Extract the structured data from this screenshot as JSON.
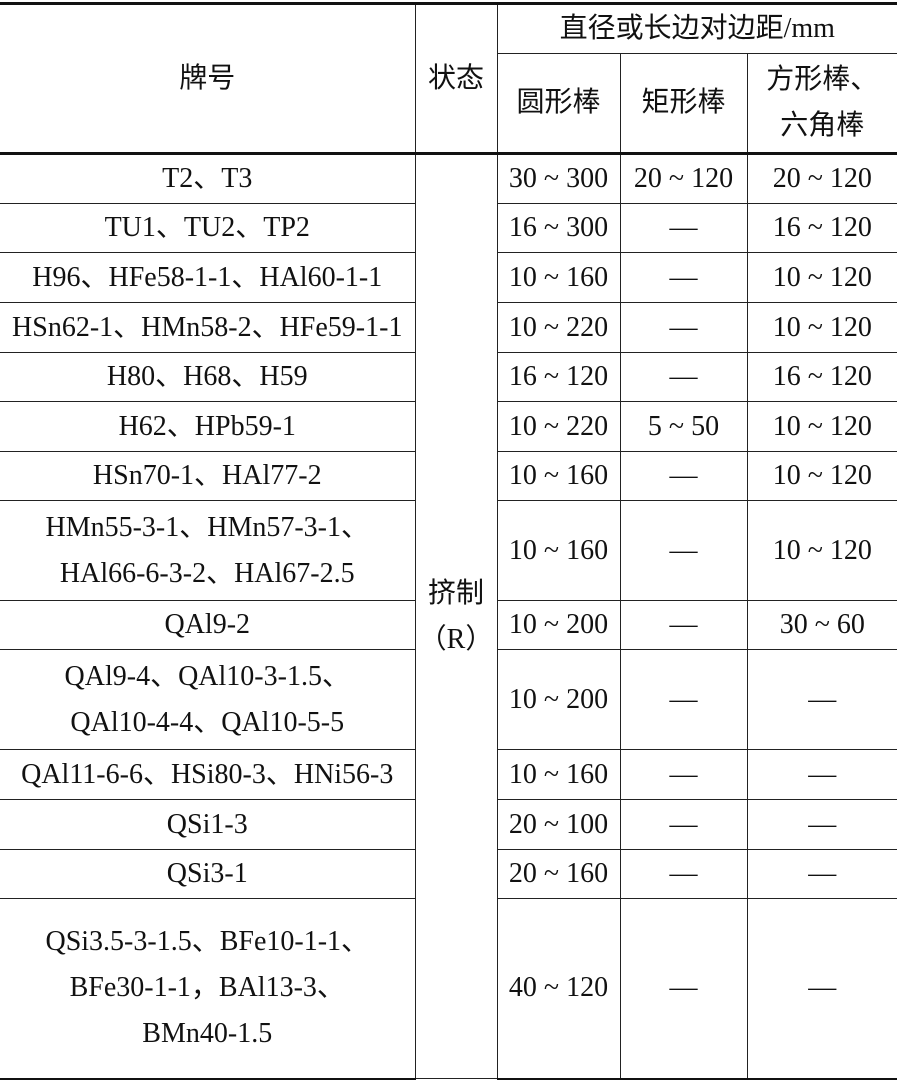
{
  "header": {
    "grade": "牌号",
    "state": "状态",
    "size_group": "直径或长边对边距/mm",
    "round_bar": "圆形棒",
    "rect_bar": "矩形棒",
    "square_hex_bar_line1": "方形棒、",
    "square_hex_bar_line2": "六角棒"
  },
  "state_value_line1": "挤制",
  "state_value_line2": "（R）",
  "rows": [
    {
      "grade": [
        "T2、T3"
      ],
      "round": "30 ~ 300",
      "rect": "20 ~ 120",
      "square": "20 ~ 120"
    },
    {
      "grade": [
        "TU1、TU2、TP2"
      ],
      "round": "16 ~ 300",
      "rect": "—",
      "square": "16 ~ 120"
    },
    {
      "grade": [
        "H96、HFe58-1-1、HAl60-1-1"
      ],
      "round": "10 ~ 160",
      "rect": "—",
      "square": "10 ~ 120"
    },
    {
      "grade": [
        "HSn62-1、HMn58-2、HFe59-1-1"
      ],
      "round": "10 ~ 220",
      "rect": "—",
      "square": "10 ~ 120"
    },
    {
      "grade": [
        "H80、H68、H59"
      ],
      "round": "16 ~ 120",
      "rect": "—",
      "square": "16 ~ 120"
    },
    {
      "grade": [
        "H62、HPb59-1"
      ],
      "round": "10 ~ 220",
      "rect": "5 ~ 50",
      "square": "10 ~ 120"
    },
    {
      "grade": [
        "HSn70-1、HAl77-2"
      ],
      "round": "10 ~ 160",
      "rect": "—",
      "square": "10 ~ 120"
    },
    {
      "grade": [
        "HMn55-3-1、HMn57-3-1、",
        "HAl66-6-3-2、HAl67-2.5"
      ],
      "round": "10 ~ 160",
      "rect": "—",
      "square": "10 ~ 120"
    },
    {
      "grade": [
        "QAl9-2"
      ],
      "round": "10 ~ 200",
      "rect": "—",
      "square": "30 ~ 60"
    },
    {
      "grade": [
        "QAl9-4、QAl10-3-1.5、",
        "QAl10-4-4、QAl10-5-5"
      ],
      "round": "10 ~ 200",
      "rect": "—",
      "square": "—"
    },
    {
      "grade": [
        "QAl11-6-6、HSi80-3、HNi56-3"
      ],
      "round": "10 ~ 160",
      "rect": "—",
      "square": "—"
    },
    {
      "grade": [
        "QSi1-3"
      ],
      "round": "20 ~ 100",
      "rect": "—",
      "square": "—"
    },
    {
      "grade": [
        "QSi3-1"
      ],
      "round": "20 ~ 160",
      "rect": "—",
      "square": "—"
    },
    {
      "grade": [
        "QSi3.5-3-1.5、BFe10-1-1、",
        "BFe30-1-1，BAl13-3、",
        "BMn40-1.5"
      ],
      "round": "40 ~ 120",
      "rect": "—",
      "square": "—"
    }
  ]
}
